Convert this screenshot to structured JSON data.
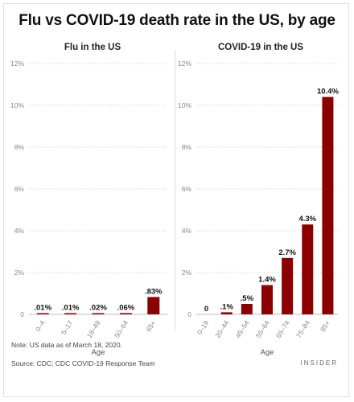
{
  "title": "Flu vs COVID-19 death rate in the US, by age",
  "footer": {
    "note": "Note: US data as of March 18, 2020.",
    "source": "Source: CDC; CDC COVID-19 Response Team",
    "brand": "INSIDER"
  },
  "colors": {
    "bar": "#8b0000",
    "grid": "#d6d6d6",
    "tick": "#888888",
    "divider": "#dcdcdc"
  },
  "chart_data": [
    {
      "type": "bar",
      "title": "Flu in the US",
      "xlabel": "Age",
      "ylabel": "",
      "ylim": [
        0,
        12
      ],
      "yticks": [
        0,
        2,
        4,
        6,
        8,
        10,
        12
      ],
      "ytick_labels": [
        "0",
        "2%",
        "4%",
        "6%",
        "8%",
        "10%",
        "12%"
      ],
      "grid": true,
      "categories": [
        "0–4",
        "5–17",
        "18–49",
        "50–64",
        "65+"
      ],
      "values": [
        0.01,
        0.01,
        0.02,
        0.06,
        0.83
      ],
      "data_labels": [
        ".01%",
        ".01%",
        ".02%",
        ".06%",
        ".83%"
      ]
    },
    {
      "type": "bar",
      "title": "COVID-19 in the US",
      "xlabel": "Age",
      "ylabel": "",
      "ylim": [
        0,
        12
      ],
      "yticks": [
        0,
        2,
        4,
        6,
        8,
        10,
        12
      ],
      "ytick_labels": [
        "0",
        "2%",
        "4%",
        "6%",
        "8%",
        "10%",
        "12%"
      ],
      "grid": true,
      "categories": [
        "0–19",
        "20–44",
        "45–54",
        "55–64",
        "65–74",
        "75–84",
        "85+"
      ],
      "values": [
        0,
        0.1,
        0.5,
        1.4,
        2.7,
        4.3,
        10.4
      ],
      "data_labels": [
        "0",
        ".1%",
        ".5%",
        "1.4%",
        "2.7%",
        "4.3%",
        "10.4%"
      ]
    }
  ]
}
